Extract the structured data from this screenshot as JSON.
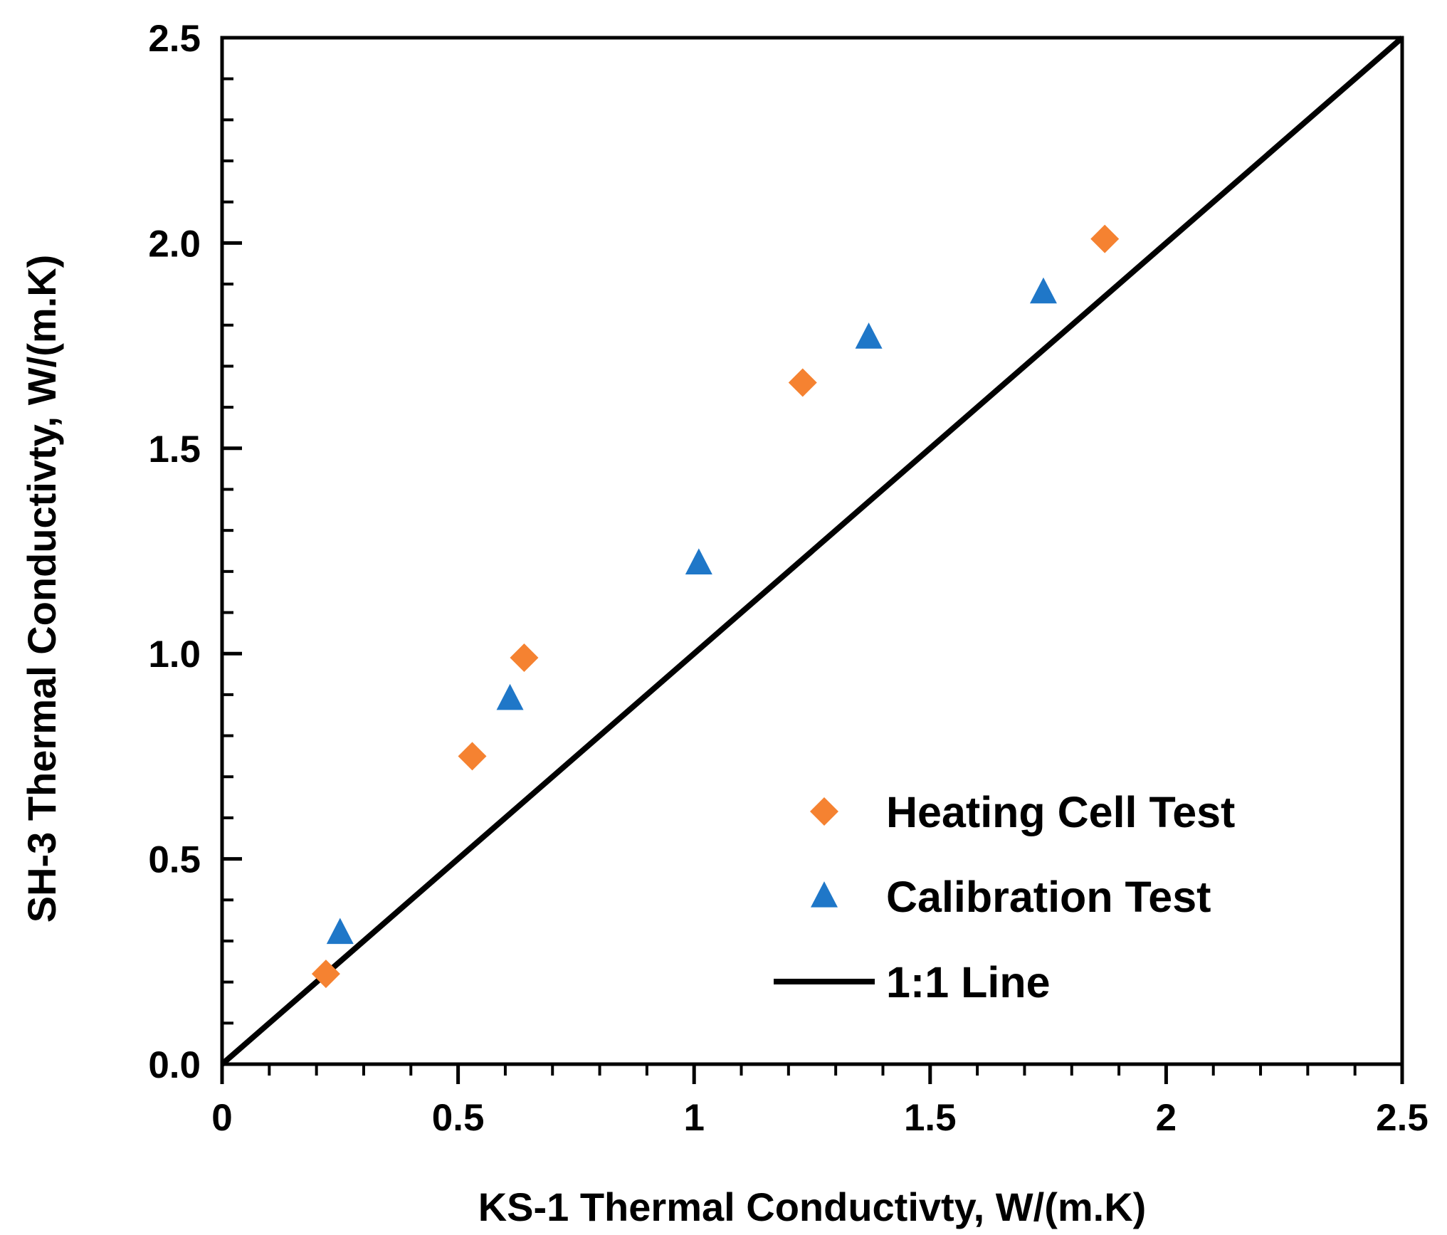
{
  "chart_data": {
    "type": "scatter",
    "xlabel": "KS-1 Thermal Conductivty,  W/(m.K)",
    "ylabel": "SH-3 Thermal Conductivty,  W/(m.K)",
    "xlim": [
      0,
      2.5
    ],
    "ylim": [
      0,
      2.5
    ],
    "x_ticks": [
      {
        "value": 0,
        "label": "0"
      },
      {
        "value": 0.5,
        "label": "0.5"
      },
      {
        "value": 1,
        "label": "1"
      },
      {
        "value": 1.5,
        "label": "1.5"
      },
      {
        "value": 2,
        "label": "2"
      },
      {
        "value": 2.5,
        "label": "2.5"
      }
    ],
    "y_ticks": [
      {
        "value": 0,
        "label": "0.0"
      },
      {
        "value": 0.5,
        "label": "0.5"
      },
      {
        "value": 1,
        "label": "1.0"
      },
      {
        "value": 1.5,
        "label": "1.5"
      },
      {
        "value": 2,
        "label": "2.0"
      },
      {
        "value": 2.5,
        "label": "2.5"
      }
    ],
    "x_minor_step": 0.1,
    "y_minor_step": 0.1,
    "grid": false,
    "legend_position": "bottom-right",
    "series": [
      {
        "name": "Heating Cell Test",
        "marker": "diamond",
        "color": "#F58231",
        "points": [
          {
            "x": 0.22,
            "y": 0.22
          },
          {
            "x": 0.53,
            "y": 0.75
          },
          {
            "x": 0.64,
            "y": 0.99
          },
          {
            "x": 1.23,
            "y": 1.66
          },
          {
            "x": 1.87,
            "y": 2.01
          }
        ]
      },
      {
        "name": "Calibration Test",
        "marker": "triangle",
        "color": "#1F77C8",
        "points": [
          {
            "x": 0.25,
            "y": 0.32
          },
          {
            "x": 0.61,
            "y": 0.89
          },
          {
            "x": 1.01,
            "y": 1.22
          },
          {
            "x": 1.37,
            "y": 1.77
          },
          {
            "x": 1.74,
            "y": 1.88
          }
        ]
      },
      {
        "name": "1:1 Line",
        "marker": "line",
        "color": "#000000",
        "points": [
          {
            "x": 0,
            "y": 0
          },
          {
            "x": 2.5,
            "y": 2.5
          }
        ]
      }
    ]
  }
}
